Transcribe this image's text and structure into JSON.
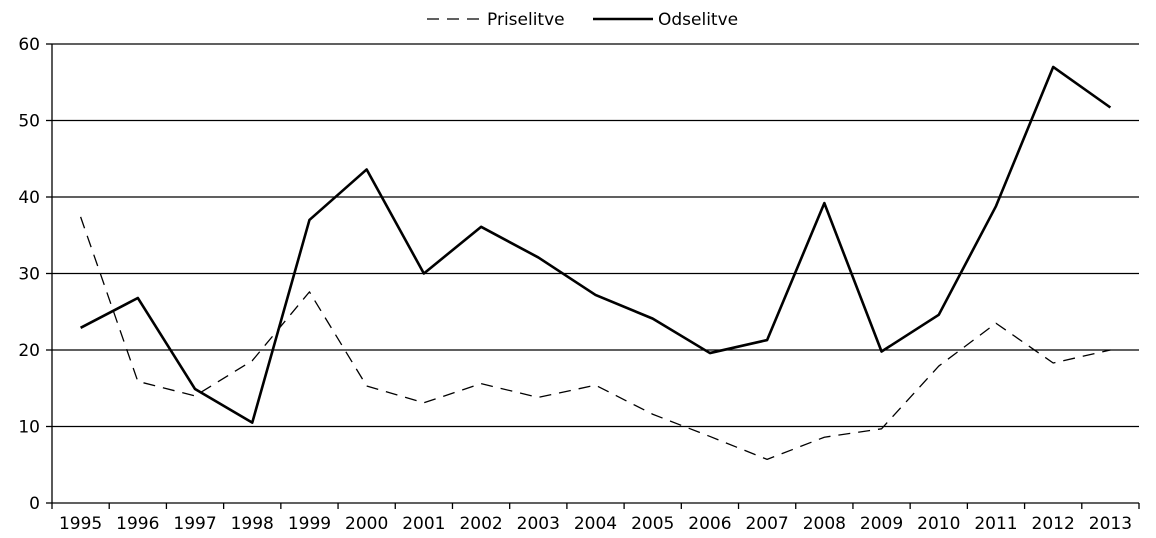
{
  "chart_data": {
    "type": "line",
    "title": "",
    "xlabel": "",
    "ylabel": "",
    "x": [
      "1995",
      "1996",
      "1997",
      "1998",
      "1999",
      "2000",
      "2001",
      "2002",
      "2003",
      "2004",
      "2005",
      "2006",
      "2007",
      "2008",
      "2009",
      "2010",
      "2011",
      "2012",
      "2013"
    ],
    "ylim": [
      0,
      60
    ],
    "yticks": [
      0,
      10,
      20,
      30,
      40,
      50,
      60
    ],
    "grid": true,
    "legend": "top-center",
    "series": [
      {
        "name": "Priselitve",
        "style": "dashed",
        "color": "#000000",
        "values": [
          37.4,
          15.9,
          14.0,
          18.6,
          27.6,
          15.3,
          13.1,
          15.6,
          13.8,
          15.4,
          11.6,
          8.7,
          5.7,
          8.6,
          9.7,
          17.9,
          23.5,
          18.3,
          20.0
        ]
      },
      {
        "name": "Odselitve",
        "style": "solid",
        "color": "#000000",
        "values": [
          22.9,
          26.8,
          14.9,
          10.5,
          37.0,
          43.6,
          30.0,
          36.1,
          32.1,
          27.2,
          24.1,
          19.6,
          21.3,
          39.2,
          19.8,
          24.6,
          38.8,
          57.0,
          51.7
        ]
      }
    ]
  }
}
